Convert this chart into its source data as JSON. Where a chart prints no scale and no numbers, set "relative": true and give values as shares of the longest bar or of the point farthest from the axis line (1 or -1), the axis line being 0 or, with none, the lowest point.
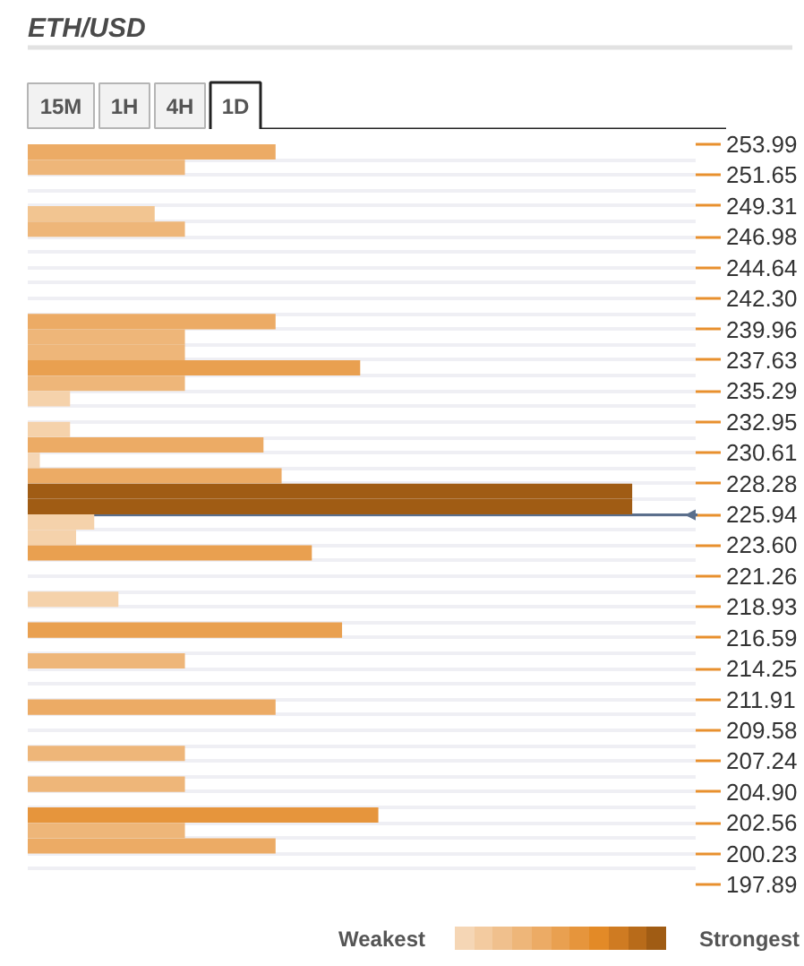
{
  "chart_data": {
    "type": "bar",
    "orientation": "horizontal",
    "relative": true,
    "title": "ETH/USD",
    "annotations": [
      "15M",
      "1H",
      "4H",
      "1D",
      "Weakest",
      "Strongest"
    ],
    "x": [
      253.41,
      252.24,
      248.73,
      247.56,
      240.55,
      239.38,
      238.21,
      237.04,
      235.87,
      234.71,
      232.37,
      231.2,
      230.03,
      228.86,
      227.69,
      226.52,
      225.36,
      224.19,
      223.02,
      219.51,
      217.17,
      214.84,
      211.33,
      207.82,
      205.49,
      203.15,
      201.98,
      200.81
    ],
    "values": [
      0.41,
      0.26,
      0.21,
      0.26,
      0.41,
      0.26,
      0.26,
      0.55,
      0.26,
      0.07,
      0.07,
      0.39,
      0.02,
      0.42,
      1,
      1,
      0.11,
      0.08,
      0.47,
      0.15,
      0.52,
      0.26,
      0.41,
      0.26,
      0.26,
      0.58,
      0.26,
      0.41
    ],
    "colors": [
      "#ecab65",
      "#eeb679",
      "#f2c591",
      "#eeb679",
      "#ecab65",
      "#eeb679",
      "#eeb679",
      "#e9a050",
      "#eeb679",
      "#f5d2ab",
      "#f5d2ab",
      "#ecab65",
      "#f5d6b5",
      "#ecab65",
      "#a05c14",
      "#a05c14",
      "#f5d2ab",
      "#f5d2ab",
      "#e9a050",
      "#f5d2ab",
      "#e9a050",
      "#eeb679",
      "#ecab65",
      "#eeb679",
      "#eeb679",
      "#e6953c",
      "#eeb679",
      "#ecab65"
    ],
    "ylim": [
      197.89,
      253.99
    ],
    "yticks": [
      253.99,
      251.65,
      249.31,
      246.98,
      244.64,
      {
        "value": 242.3,
        "label": "242.30"
      },
      239.96,
      237.63,
      235.29,
      232.95,
      230.61,
      228.28,
      225.94,
      {
        "value": 223.6,
        "label": "223.60"
      },
      221.26,
      218.93,
      216.59,
      214.25,
      211.91,
      209.58,
      207.24,
      {
        "value": 204.9,
        "label": "204.90"
      },
      202.56,
      200.23,
      197.89
    ],
    "grid": "y",
    "ref_lines": [
      {
        "axis": "y",
        "value": 225.9,
        "color": "#5b6f8c"
      }
    ]
  }
}
